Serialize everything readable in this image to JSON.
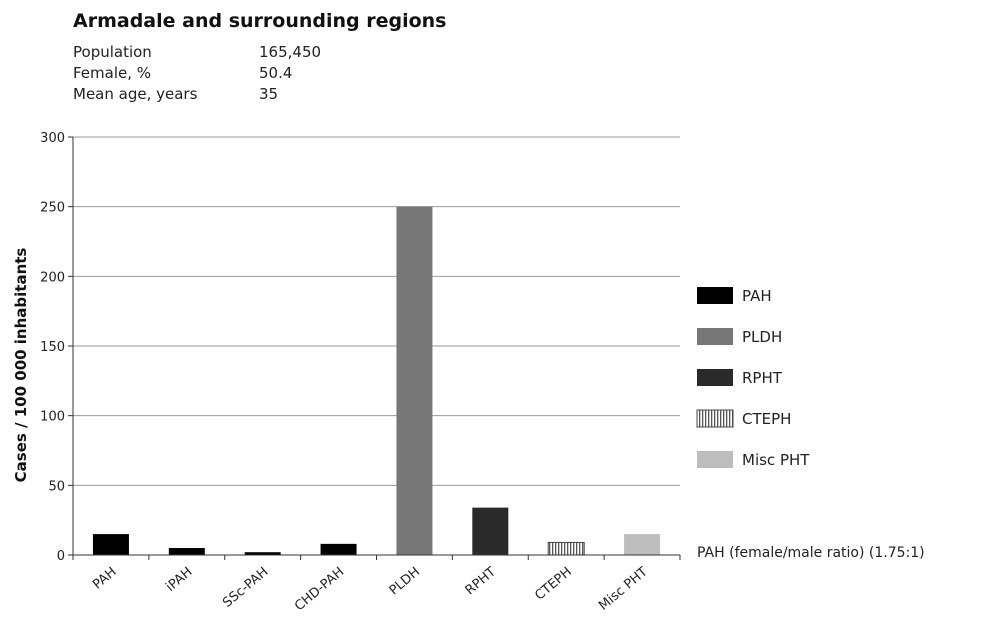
{
  "header": {
    "title": "Armadale and surrounding regions",
    "stats": [
      {
        "label": "Population",
        "value": "165,450"
      },
      {
        "label": "Female, %",
        "value": "50.4"
      },
      {
        "label": "Mean age, years",
        "value": "35"
      }
    ]
  },
  "chart_data": {
    "type": "bar",
    "ylabel": "Cases / 100 000 inhabitants",
    "ylim": [
      0,
      300
    ],
    "yticks": [
      0,
      50,
      100,
      150,
      200,
      250,
      300
    ],
    "grid": true,
    "categories": [
      "PAH",
      "iPAH",
      "SSc-PAH",
      "CHD-PAH",
      "PLDH",
      "RPHT",
      "CTEPH",
      "Misc PHT"
    ],
    "values": [
      15,
      5,
      2,
      8,
      250,
      34,
      9,
      15
    ],
    "bar_group": [
      "PAH",
      "PAH",
      "PAH",
      "PAH",
      "PLDH",
      "RPHT",
      "CTEPH",
      "Misc PHT"
    ],
    "legend": {
      "position": "right",
      "entries": [
        {
          "name": "PAH",
          "color": "#000000",
          "pattern": "solid"
        },
        {
          "name": "PLDH",
          "color": "#777777",
          "pattern": "solid"
        },
        {
          "name": "RPHT",
          "color": "#2a2a2a",
          "pattern": "solid"
        },
        {
          "name": "CTEPH",
          "color": "#666666",
          "pattern": "vertical-stripes"
        },
        {
          "name": "Misc PHT",
          "color": "#bdbdbd",
          "pattern": "solid"
        }
      ]
    },
    "annotation": "PAH (female/male ratio) (1.75:1)"
  }
}
